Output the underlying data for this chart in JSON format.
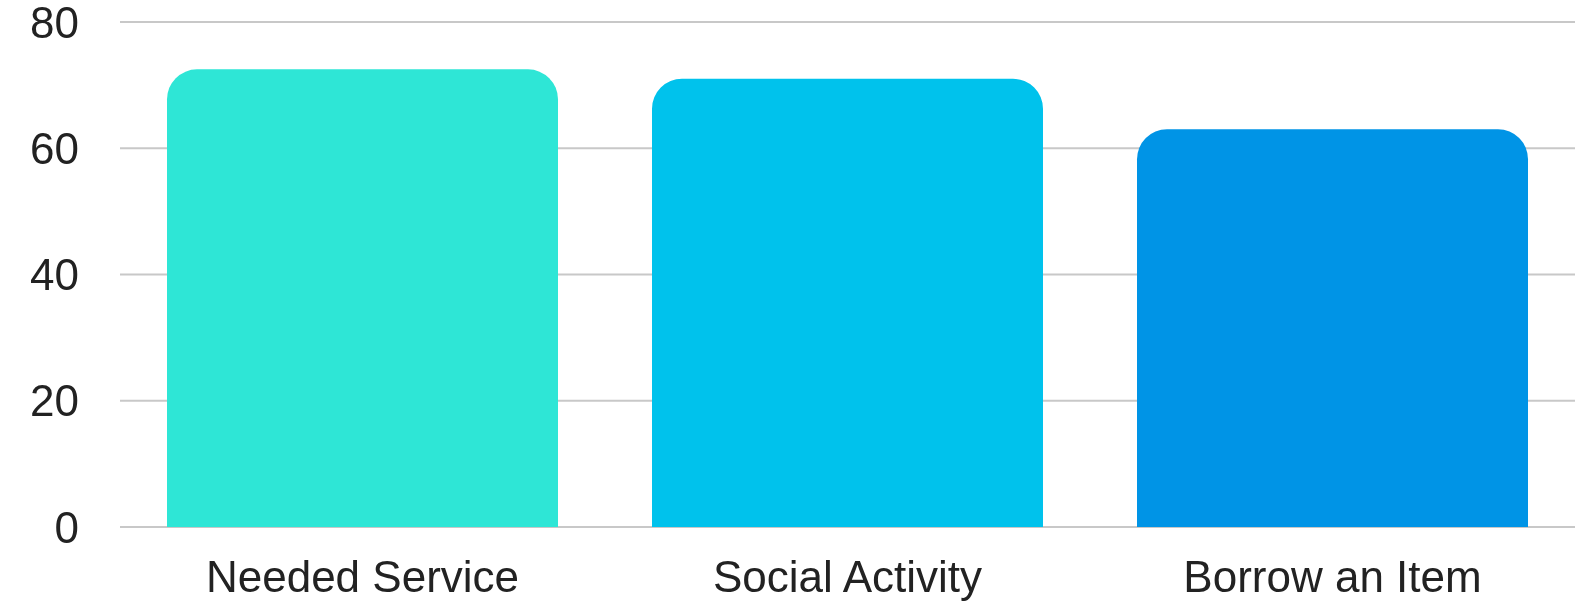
{
  "chart_data": {
    "type": "bar",
    "categories": [
      "Needed Service",
      "Social Activity",
      "Borrow an Item"
    ],
    "values": [
      72.5,
      71,
      63
    ],
    "colors": [
      "#2ee6d6",
      "#00c2ec",
      "#0094e6"
    ],
    "ylim": [
      0,
      80
    ],
    "yticks": [
      0,
      20,
      40,
      60,
      80
    ],
    "grid": "y"
  }
}
